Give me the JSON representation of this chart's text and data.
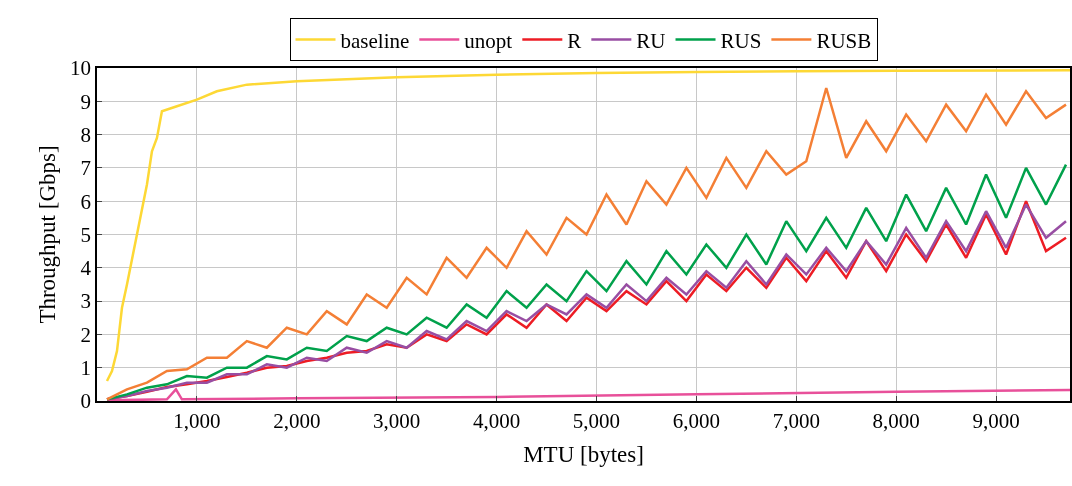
{
  "chart_data": {
    "type": "line",
    "xlabel": "MTU [bytes]",
    "ylabel": "Throughput [Gbps]",
    "x": [
      100,
      300,
      500,
      700,
      900,
      1100,
      1300,
      1500,
      1700,
      1900,
      2100,
      2300,
      2500,
      2700,
      2900,
      3100,
      3300,
      3500,
      3700,
      3900,
      4100,
      4300,
      4500,
      4700,
      4900,
      5100,
      5300,
      5500,
      5700,
      5900,
      6100,
      6300,
      6500,
      6700,
      6900,
      7100,
      7300,
      7500,
      7700,
      7900,
      8100,
      8300,
      8500,
      8700,
      8900,
      9100,
      9300,
      9500,
      9700
    ],
    "series": [
      {
        "name": "baseline",
        "color": "#fdd835",
        "x": [
          100,
          150,
          200,
          250,
          300,
          400,
          500,
          550,
          600,
          650,
          800,
          1000,
          1200,
          1500,
          2000,
          3000,
          4000,
          5000,
          6000,
          7000,
          8000,
          9740
        ],
        "values": [
          0.6,
          0.9,
          1.5,
          2.8,
          3.5,
          5.0,
          6.5,
          7.5,
          7.9,
          8.7,
          8.85,
          9.05,
          9.3,
          9.5,
          9.6,
          9.72,
          9.8,
          9.85,
          9.88,
          9.9,
          9.92,
          9.93
        ]
      },
      {
        "name": "unopt",
        "color": "#e8509a",
        "x": [
          100,
          700,
          790,
          850,
          2000,
          4000,
          6000,
          8000,
          9740
        ],
        "values": [
          0.02,
          0.05,
          0.35,
          0.05,
          0.08,
          0.12,
          0.2,
          0.28,
          0.33
        ]
      },
      {
        "name": "R",
        "color": "#ed1c24",
        "values": [
          0.05,
          0.15,
          0.28,
          0.42,
          0.5,
          0.6,
          0.72,
          0.85,
          1.0,
          1.05,
          1.2,
          1.3,
          1.45,
          1.5,
          1.7,
          1.6,
          2.0,
          1.8,
          2.3,
          2.0,
          2.6,
          2.2,
          2.9,
          2.4,
          3.1,
          2.7,
          3.3,
          2.9,
          3.6,
          3.0,
          3.8,
          3.3,
          4.0,
          3.4,
          4.3,
          3.6,
          4.5,
          3.7,
          4.8,
          3.9,
          5.0,
          4.2,
          5.3,
          4.3,
          5.6,
          4.4,
          6.0,
          4.5,
          4.9
        ]
      },
      {
        "name": "RU",
        "color": "#984ea3",
        "values": [
          0.05,
          0.15,
          0.3,
          0.4,
          0.55,
          0.55,
          0.8,
          0.8,
          1.1,
          1.0,
          1.3,
          1.2,
          1.6,
          1.45,
          1.8,
          1.6,
          2.1,
          1.85,
          2.4,
          2.1,
          2.7,
          2.4,
          2.9,
          2.6,
          3.2,
          2.8,
          3.5,
          3.0,
          3.7,
          3.2,
          3.9,
          3.4,
          4.2,
          3.5,
          4.4,
          3.8,
          4.6,
          3.9,
          4.8,
          4.1,
          5.2,
          4.3,
          5.4,
          4.5,
          5.7,
          4.6,
          5.9,
          4.9,
          5.4
        ]
      },
      {
        "name": "RUS",
        "color": "#00a14b",
        "values": [
          0.05,
          0.2,
          0.4,
          0.5,
          0.75,
          0.7,
          1.0,
          1.0,
          1.35,
          1.25,
          1.6,
          1.5,
          1.95,
          1.8,
          2.2,
          2.0,
          2.5,
          2.2,
          2.9,
          2.5,
          3.3,
          2.8,
          3.5,
          3.0,
          3.9,
          3.3,
          4.2,
          3.5,
          4.5,
          3.8,
          4.7,
          4.0,
          5.0,
          4.1,
          5.4,
          4.5,
          5.5,
          4.6,
          5.8,
          4.8,
          6.2,
          5.1,
          6.4,
          5.3,
          6.8,
          5.5,
          7.0,
          5.9,
          7.1
        ]
      },
      {
        "name": "RUSB",
        "color": "#f47f35",
        "values": [
          0.05,
          0.35,
          0.55,
          0.9,
          0.95,
          1.3,
          1.3,
          1.8,
          1.6,
          2.2,
          2.0,
          2.7,
          2.3,
          3.2,
          2.8,
          3.7,
          3.2,
          4.3,
          3.7,
          4.6,
          4.0,
          5.1,
          4.4,
          5.5,
          5.0,
          6.2,
          5.3,
          6.6,
          5.9,
          7.0,
          6.1,
          7.3,
          6.4,
          7.5,
          6.8,
          7.2,
          9.4,
          7.3,
          8.4,
          7.5,
          8.6,
          7.8,
          8.9,
          8.1,
          9.2,
          8.3,
          9.3,
          8.5,
          8.9
        ]
      }
    ],
    "xlim": [
      0,
      9740
    ],
    "xticks": [
      {
        "value": 1000,
        "label": "1,000"
      },
      {
        "value": 2000,
        "label": "2,000"
      },
      {
        "value": 3000,
        "label": "3,000"
      },
      {
        "value": 4000,
        "label": "4,000"
      },
      {
        "value": 5000,
        "label": "5,000"
      },
      {
        "value": 6000,
        "label": "6,000"
      },
      {
        "value": 7000,
        "label": "7,000"
      },
      {
        "value": 8000,
        "label": "8,000"
      },
      {
        "value": 9000,
        "label": "9,000"
      }
    ],
    "ylim": [
      0,
      10
    ],
    "yticks": [
      0,
      1,
      2,
      3,
      4,
      5,
      6,
      7,
      8,
      9,
      10
    ],
    "grid": true,
    "legend": "top",
    "marker": "none",
    "line_style": "solid"
  }
}
